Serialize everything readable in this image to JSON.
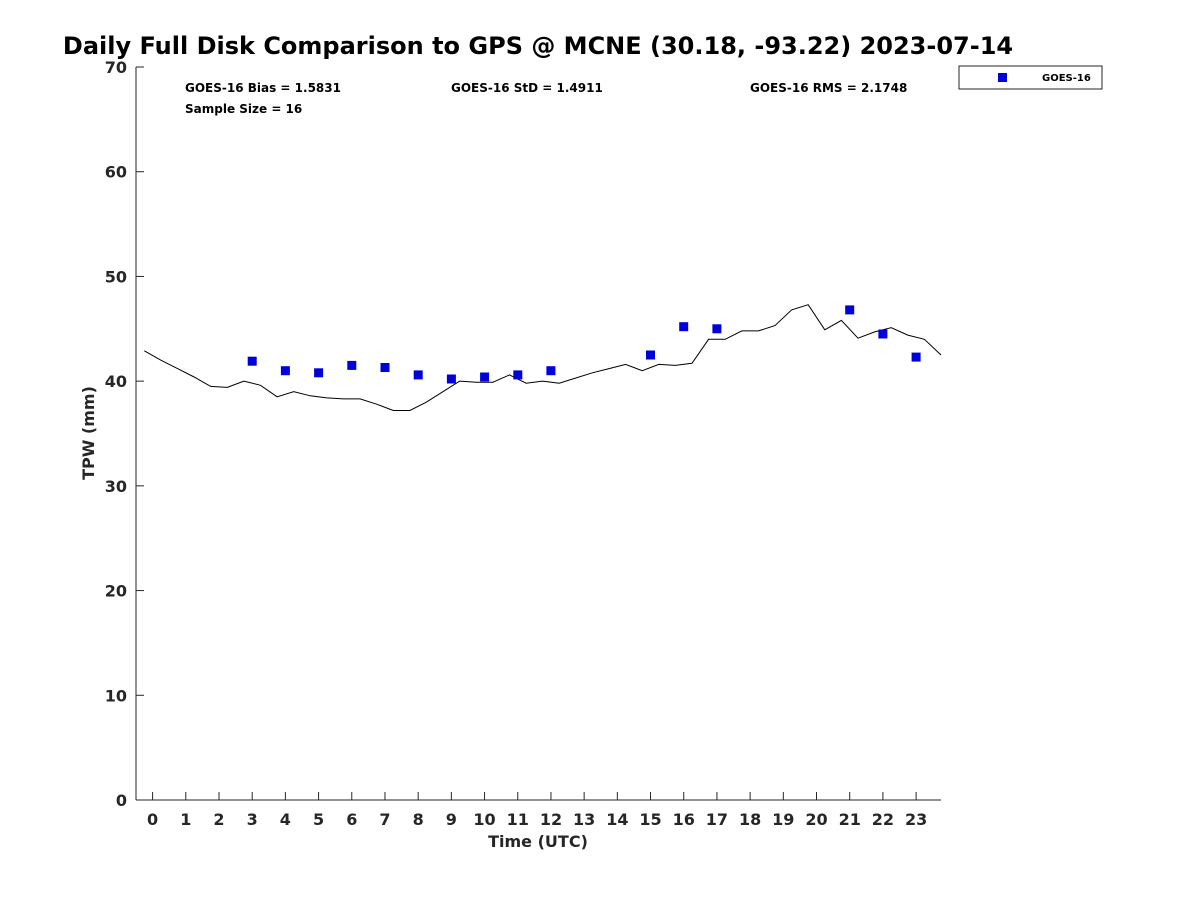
{
  "chart_data": {
    "type": "scatter",
    "title": "Daily Full Disk Comparison to GPS @ MCNE (30.18, -93.22) 2023-07-14",
    "xlabel": "Time (UTC)",
    "ylabel": "TPW (mm)",
    "xlim": [
      -0.5,
      23.75
    ],
    "ylim": [
      0,
      70
    ],
    "x_ticks": [
      "0",
      "1",
      "2",
      "3",
      "4",
      "5",
      "6",
      "7",
      "8",
      "9",
      "10",
      "11",
      "12",
      "13",
      "14",
      "15",
      "16",
      "17",
      "18",
      "19",
      "20",
      "21",
      "22",
      "23"
    ],
    "y_ticks": [
      "0",
      "10",
      "20",
      "30",
      "40",
      "50",
      "60",
      "70"
    ],
    "grid": false,
    "legend_position": "top-right",
    "stats": {
      "bias": "GOES-16 Bias = 1.5831",
      "std": "GOES-16 StD = 1.4911",
      "rms": "GOES-16 RMS = 2.1748",
      "sample_size": "Sample Size = 16"
    },
    "series": [
      {
        "name": "GOES-16",
        "kind": "scatter",
        "color": "#0000dd",
        "marker": "square",
        "points": [
          [
            3,
            41.9
          ],
          [
            4,
            41.0
          ],
          [
            5,
            40.8
          ],
          [
            6,
            41.5
          ],
          [
            7,
            41.3
          ],
          [
            8,
            40.6
          ],
          [
            9,
            40.2
          ],
          [
            10,
            40.4
          ],
          [
            11,
            40.6
          ],
          [
            12,
            41.0
          ],
          [
            15,
            42.5
          ],
          [
            16,
            45.2
          ],
          [
            17,
            45.0
          ],
          [
            21,
            46.8
          ],
          [
            22,
            44.5
          ],
          [
            23,
            42.3
          ]
        ]
      },
      {
        "kind": "line",
        "color": "#000000",
        "points": [
          [
            -0.25,
            42.9
          ],
          [
            0.25,
            42.0
          ],
          [
            0.75,
            41.2
          ],
          [
            1.25,
            40.4
          ],
          [
            1.75,
            39.5
          ],
          [
            2.25,
            39.4
          ],
          [
            2.75,
            40.0
          ],
          [
            3.25,
            39.6
          ],
          [
            3.75,
            38.5
          ],
          [
            4.25,
            39.0
          ],
          [
            4.75,
            38.6
          ],
          [
            5.25,
            38.4
          ],
          [
            5.75,
            38.3
          ],
          [
            6.25,
            38.3
          ],
          [
            6.75,
            37.8
          ],
          [
            7.25,
            37.2
          ],
          [
            7.75,
            37.2
          ],
          [
            8.25,
            38.0
          ],
          [
            8.75,
            39.0
          ],
          [
            9.25,
            40.0
          ],
          [
            9.75,
            39.9
          ],
          [
            10.25,
            39.9
          ],
          [
            10.75,
            40.6
          ],
          [
            11.25,
            39.8
          ],
          [
            11.75,
            40.0
          ],
          [
            12.25,
            39.8
          ],
          [
            12.75,
            40.3
          ],
          [
            13.25,
            40.8
          ],
          [
            13.75,
            41.2
          ],
          [
            14.25,
            41.6
          ],
          [
            14.75,
            41.0
          ],
          [
            15.25,
            41.6
          ],
          [
            15.75,
            41.5
          ],
          [
            16.25,
            41.7
          ],
          [
            16.75,
            44.0
          ],
          [
            17.25,
            44.0
          ],
          [
            17.75,
            44.8
          ],
          [
            18.25,
            44.8
          ],
          [
            18.75,
            45.3
          ],
          [
            19.25,
            46.8
          ],
          [
            19.75,
            47.3
          ],
          [
            20.25,
            44.9
          ],
          [
            20.75,
            45.8
          ],
          [
            21.25,
            44.1
          ],
          [
            21.75,
            44.7
          ],
          [
            22.25,
            45.1
          ],
          [
            22.75,
            44.4
          ],
          [
            23.25,
            44.0
          ],
          [
            23.75,
            42.5
          ]
        ]
      }
    ]
  }
}
